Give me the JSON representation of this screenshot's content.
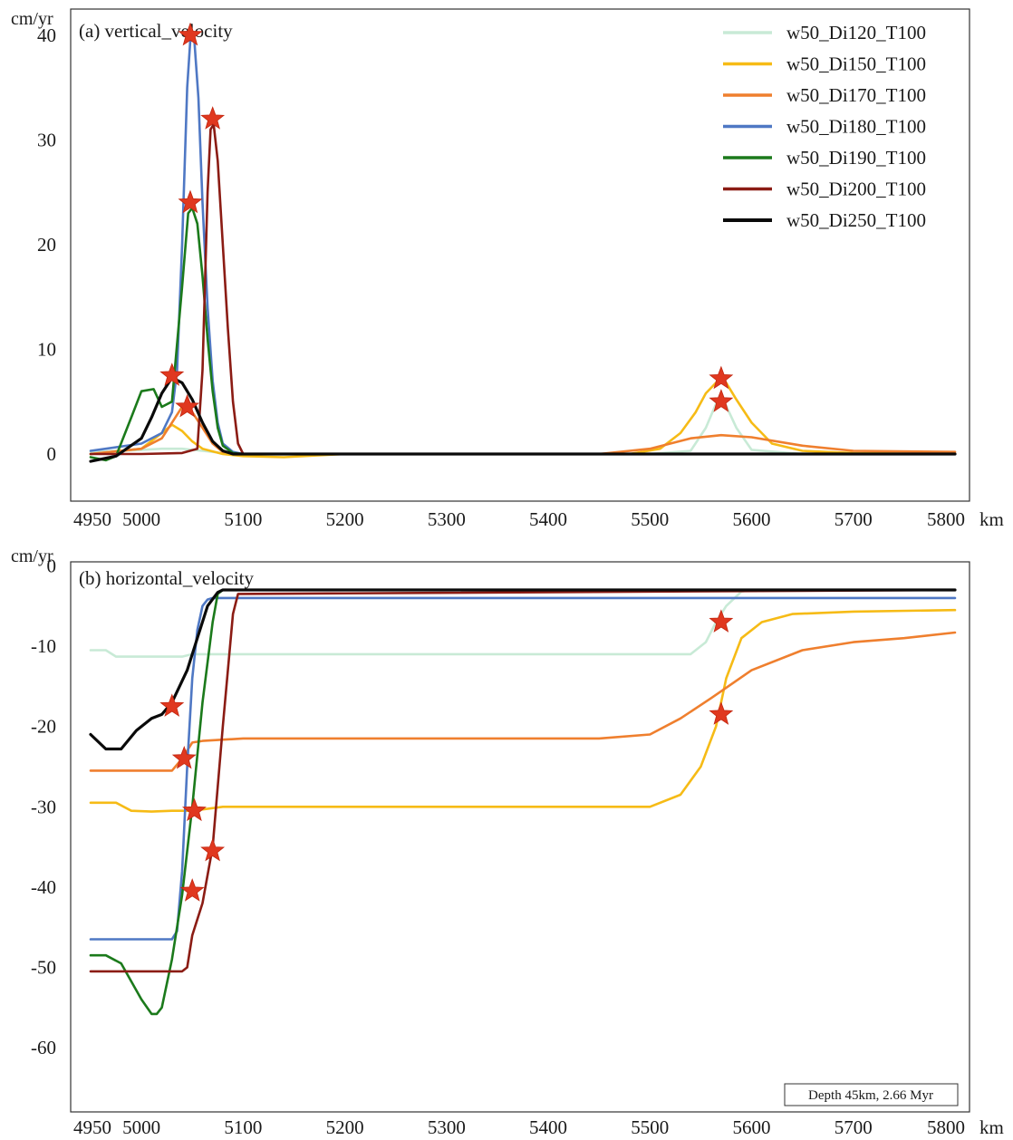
{
  "chart_data": [
    {
      "type": "line",
      "title": "(a) vertical_velocity",
      "ylabel": "cm/yr",
      "xlabel": "km",
      "xlim": [
        4950,
        5800
      ],
      "ylim": [
        -4.5,
        42.5
      ],
      "xticks": [
        4950,
        5000,
        5100,
        5200,
        5300,
        5400,
        5500,
        5600,
        5700,
        5800
      ],
      "yticks": [
        0,
        10,
        20,
        30,
        40
      ],
      "grid": false,
      "legend_position": "top-right",
      "series": [
        {
          "name": "w50_Di120_T100",
          "color": "#c8ead6",
          "x": [
            4950,
            5000,
            5020,
            5040,
            5060,
            5080,
            5100,
            5200,
            5500,
            5540,
            5555,
            5565,
            5570,
            5575,
            5585,
            5600,
            5650,
            5800
          ],
          "y": [
            0.2,
            0.4,
            0.5,
            0.5,
            0.3,
            0.1,
            0,
            0,
            0,
            0.3,
            2.5,
            4.8,
            5.0,
            4.6,
            2.5,
            0.4,
            0,
            0
          ]
        },
        {
          "name": "w50_Di150_T100",
          "color": "#f6bb16",
          "x": [
            4950,
            5000,
            5020,
            5030,
            5040,
            5050,
            5060,
            5080,
            5100,
            5140,
            5200,
            5480,
            5510,
            5530,
            5545,
            5555,
            5565,
            5570,
            5575,
            5585,
            5600,
            5620,
            5650,
            5700,
            5800
          ],
          "y": [
            0,
            0.5,
            2.0,
            2.8,
            2.2,
            1.2,
            0.5,
            0,
            -0.2,
            -0.3,
            0,
            0,
            0.5,
            2.0,
            4.0,
            5.8,
            6.8,
            7.0,
            6.8,
            5.2,
            3.0,
            1.0,
            0.3,
            0.1,
            0
          ]
        },
        {
          "name": "w50_Di170_T100",
          "color": "#ef7f2e",
          "x": [
            4950,
            5000,
            5020,
            5030,
            5040,
            5045,
            5050,
            5060,
            5070,
            5080,
            5100,
            5450,
            5500,
            5540,
            5570,
            5600,
            5650,
            5700,
            5800
          ],
          "y": [
            0,
            0.5,
            1.5,
            3.0,
            4.5,
            4.7,
            4.0,
            2.5,
            1.0,
            0.2,
            0,
            0,
            0.5,
            1.5,
            1.8,
            1.6,
            0.8,
            0.3,
            0.2
          ]
        },
        {
          "name": "w50_Di180_T100",
          "color": "#4f78c4",
          "x": [
            4950,
            5000,
            5020,
            5030,
            5035,
            5040,
            5045,
            5048,
            5052,
            5056,
            5060,
            5065,
            5070,
            5075,
            5080,
            5090,
            5100,
            5800
          ],
          "y": [
            0.3,
            1.0,
            2.0,
            4.0,
            8.0,
            20.0,
            35.0,
            39.5,
            39.5,
            34.0,
            24.0,
            14.0,
            7.0,
            3.0,
            1.0,
            0.2,
            0,
            0
          ]
        },
        {
          "name": "w50_Di190_T100",
          "color": "#1b7a1b",
          "x": [
            4950,
            4965,
            4975,
            4990,
            5000,
            5012,
            5020,
            5030,
            5040,
            5046,
            5050,
            5055,
            5060,
            5065,
            5070,
            5075,
            5080,
            5090,
            5100,
            5800
          ],
          "y": [
            -0.3,
            -0.6,
            -0.2,
            3.5,
            6.0,
            6.2,
            4.5,
            5.0,
            16.0,
            23.0,
            23.5,
            22.0,
            17.0,
            11.0,
            6.0,
            2.5,
            0.8,
            0.1,
            0,
            0
          ]
        },
        {
          "name": "w50_Di200_T100",
          "color": "#8b1c14",
          "x": [
            4950,
            5000,
            5040,
            5055,
            5060,
            5065,
            5068,
            5071,
            5075,
            5080,
            5085,
            5090,
            5095,
            5100,
            5800
          ],
          "y": [
            0,
            0,
            0.1,
            0.5,
            8.0,
            25.0,
            31.0,
            31.5,
            28.0,
            20.0,
            12.0,
            5.0,
            1.0,
            0,
            0
          ]
        },
        {
          "name": "w50_Di250_T100",
          "color": "#0a0a0a",
          "x": [
            4950,
            4975,
            5000,
            5010,
            5020,
            5030,
            5040,
            5050,
            5060,
            5070,
            5080,
            5090,
            5100,
            5800
          ],
          "y": [
            -0.7,
            -0.2,
            1.5,
            3.5,
            5.8,
            7.3,
            6.8,
            5.2,
            3.0,
            1.2,
            0.3,
            0,
            0,
            0
          ]
        }
      ],
      "markers": [
        {
          "x": 5048,
          "y": 40.0
        },
        {
          "x": 5070,
          "y": 32.0
        },
        {
          "x": 5048,
          "y": 24.0
        },
        {
          "x": 5030,
          "y": 7.5
        },
        {
          "x": 5045,
          "y": 4.5
        },
        {
          "x": 5570,
          "y": 7.2
        },
        {
          "x": 5570,
          "y": 5.0
        }
      ]
    },
    {
      "type": "line",
      "title": "(b) horizontal_velocity",
      "ylabel": "cm/yr",
      "xlabel": "km",
      "annotation": "Depth 45km, 2.66 Myr",
      "xlim": [
        4950,
        5800
      ],
      "ylim": [
        -68,
        0.5
      ],
      "xticks": [
        4950,
        5000,
        5100,
        5200,
        5300,
        5400,
        5500,
        5600,
        5700,
        5800
      ],
      "yticks": [
        0,
        -10,
        -20,
        -30,
        -40,
        -50,
        -60
      ],
      "grid": false,
      "series": [
        {
          "name": "w50_Di120_T100",
          "color": "#c8ead6",
          "x": [
            4950,
            4965,
            4975,
            5000,
            5040,
            5050,
            5100,
            5540,
            5555,
            5565,
            5575,
            5590,
            5600
          ],
          "y": [
            -10.5,
            -10.5,
            -11.3,
            -11.3,
            -11.3,
            -11.0,
            -11.0,
            -11.0,
            -9.5,
            -7.0,
            -5.0,
            -3.2,
            -3.0
          ]
        },
        {
          "name": "w50_Di150_T100",
          "color": "#f6bb16",
          "x": [
            4950,
            4975,
            4990,
            5010,
            5030,
            5050,
            5080,
            5100,
            5200,
            5500,
            5530,
            5550,
            5565,
            5575,
            5590,
            5610,
            5640,
            5700,
            5800
          ],
          "y": [
            -29.5,
            -29.5,
            -30.5,
            -30.6,
            -30.5,
            -30.5,
            -30.0,
            -30.0,
            -30.0,
            -30.0,
            -28.5,
            -25.0,
            -20.0,
            -14.0,
            -9.0,
            -7.0,
            -6.0,
            -5.7,
            -5.5
          ]
        },
        {
          "name": "w50_Di170_T100",
          "color": "#ef7f2e",
          "x": [
            4950,
            4975,
            5000,
            5030,
            5040,
            5050,
            5060,
            5100,
            5200,
            5450,
            5500,
            5530,
            5560,
            5600,
            5650,
            5700,
            5750,
            5800
          ],
          "y": [
            -25.5,
            -25.5,
            -25.5,
            -25.5,
            -24.0,
            -22.0,
            -21.8,
            -21.5,
            -21.5,
            -21.5,
            -21.0,
            -19.0,
            -16.5,
            -13.0,
            -10.5,
            -9.5,
            -9.0,
            -8.3
          ]
        },
        {
          "name": "w50_Di180_T100",
          "color": "#4f78c4",
          "x": [
            4950,
            5000,
            5030,
            5035,
            5040,
            5045,
            5050,
            5055,
            5060,
            5065,
            5070,
            5800
          ],
          "y": [
            -46.5,
            -46.5,
            -46.5,
            -45.5,
            -38.0,
            -25.0,
            -14.0,
            -8.0,
            -5.0,
            -4.2,
            -4.0,
            -4.0
          ]
        },
        {
          "name": "w50_Di190_T100",
          "color": "#1b7a1b",
          "x": [
            4950,
            4965,
            4980,
            5000,
            5010,
            5015,
            5020,
            5030,
            5040,
            5050,
            5060,
            5070,
            5075,
            5080,
            5800
          ],
          "y": [
            -48.5,
            -48.5,
            -49.5,
            -54.0,
            -55.8,
            -55.8,
            -55.0,
            -49.0,
            -41.0,
            -30.0,
            -17.0,
            -7.0,
            -3.5,
            -3.0,
            -3.0
          ]
        },
        {
          "name": "w50_Di200_T100",
          "color": "#8b1c14",
          "x": [
            4950,
            5000,
            5040,
            5045,
            5050,
            5060,
            5070,
            5080,
            5090,
            5095,
            5800
          ],
          "y": [
            -50.5,
            -50.5,
            -50.5,
            -50.0,
            -46.0,
            -42.0,
            -35.0,
            -20.0,
            -6.0,
            -3.5,
            -3.0
          ]
        },
        {
          "name": "w50_Di250_T100",
          "color": "#0a0a0a",
          "x": [
            4950,
            4965,
            4980,
            4995,
            5010,
            5020,
            5030,
            5045,
            5055,
            5065,
            5075,
            5080,
            5800
          ],
          "y": [
            -21.0,
            -22.8,
            -22.8,
            -20.5,
            -19.0,
            -18.5,
            -17.0,
            -13.0,
            -9.0,
            -5.0,
            -3.3,
            -3.0,
            -3.0
          ]
        }
      ],
      "markers": [
        {
          "x": 5570,
          "y": -7.0
        },
        {
          "x": 5570,
          "y": -18.5
        },
        {
          "x": 5030,
          "y": -17.5
        },
        {
          "x": 5042,
          "y": -24.0
        },
        {
          "x": 5052,
          "y": -30.5
        },
        {
          "x": 5070,
          "y": -35.5
        },
        {
          "x": 5050,
          "y": -40.5
        }
      ]
    }
  ]
}
